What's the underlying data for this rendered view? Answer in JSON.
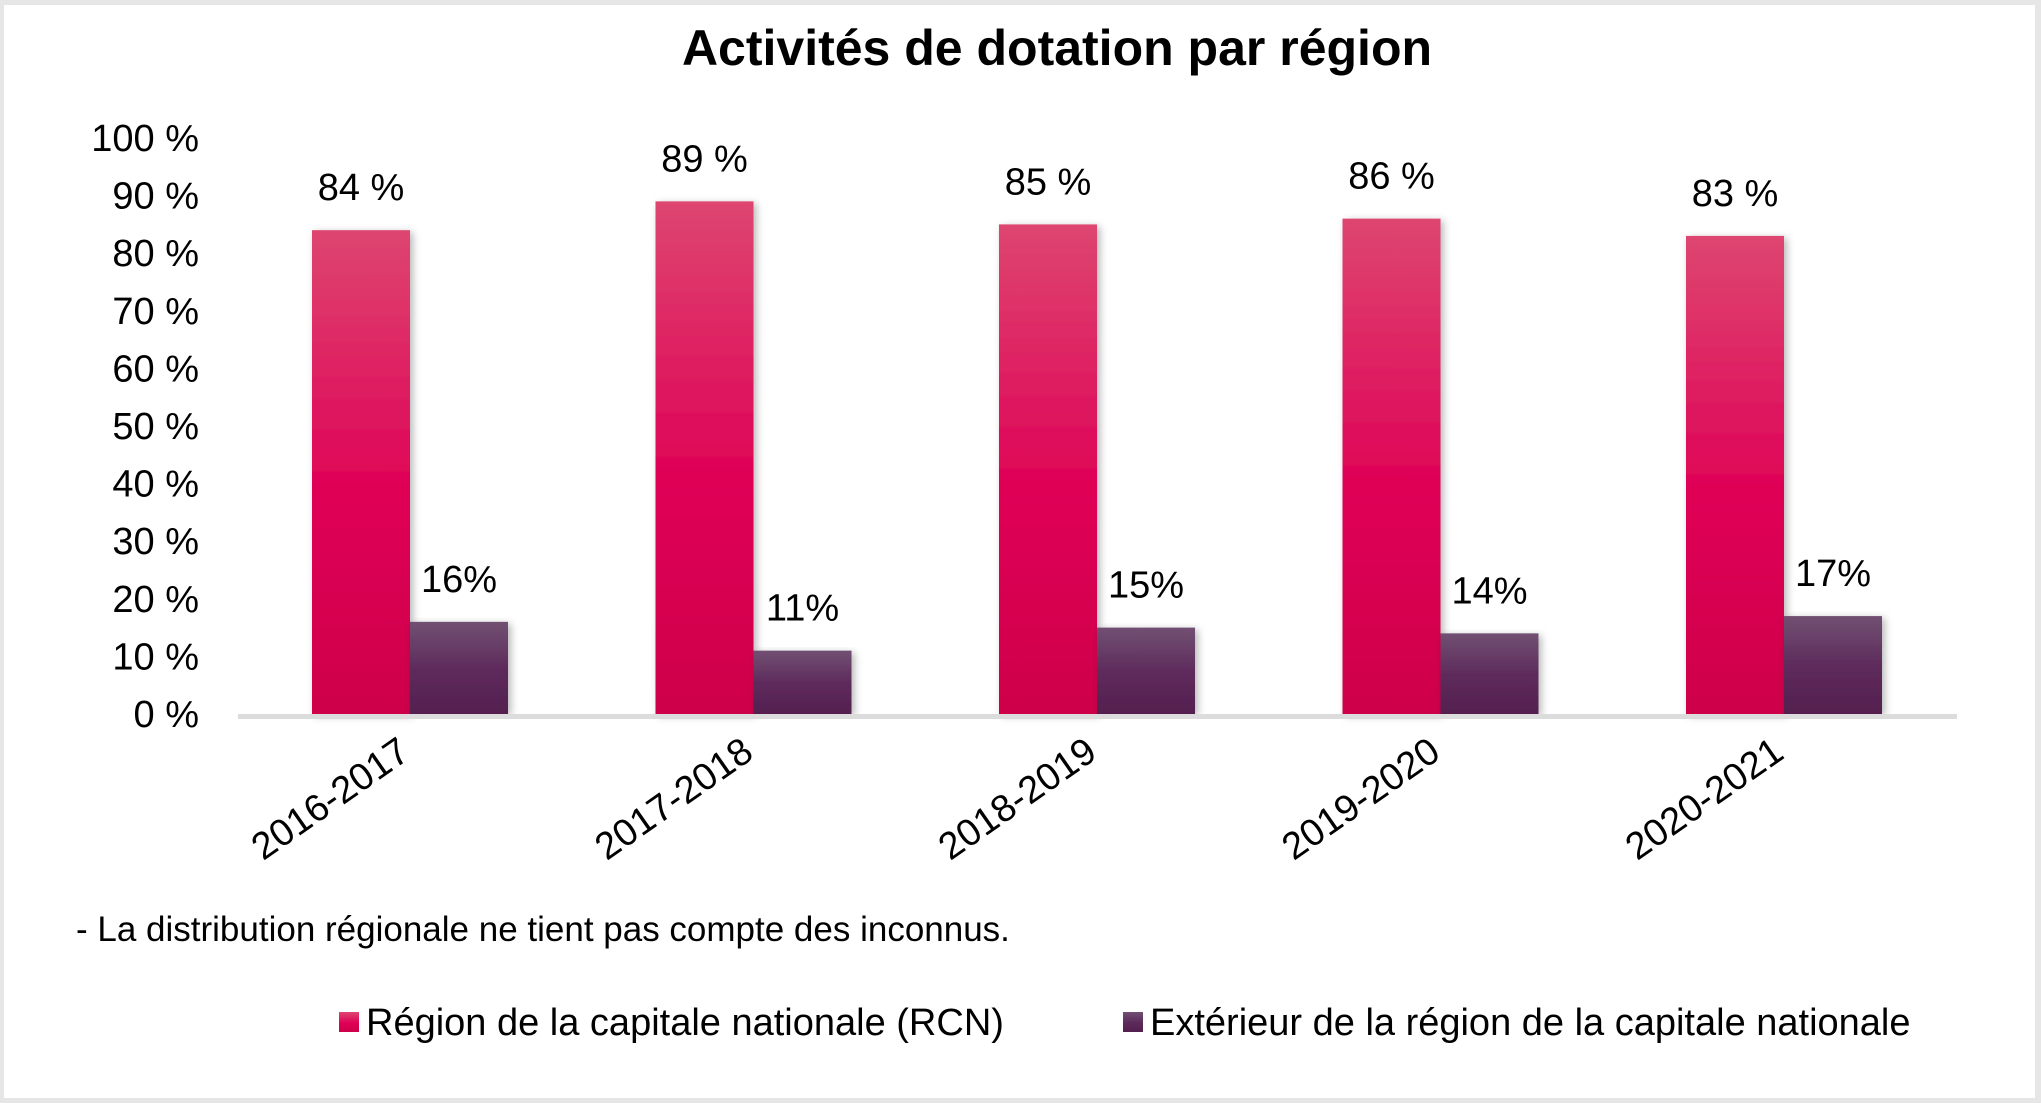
{
  "chart_data": {
    "type": "bar",
    "title": "Activités de dotation par région",
    "xlabel": "",
    "ylabel": "",
    "ylim": [
      0,
      100
    ],
    "yticks": [
      0,
      10,
      20,
      30,
      40,
      50,
      60,
      70,
      80,
      90,
      100
    ],
    "ytick_labels": [
      "0 %",
      "10 %",
      "20 %",
      "30 %",
      "40 %",
      "50 %",
      "60 %",
      "70 %",
      "80 %",
      "90 %",
      "100 %"
    ],
    "grid": false,
    "categories": [
      "2016-2017",
      "2017-2018",
      "2018-2019",
      "2019-2020",
      "2020-2021"
    ],
    "series": [
      {
        "name": "Région de la capitale nationale (RCN)",
        "values": [
          84,
          89,
          85,
          86,
          83
        ],
        "labels": [
          "84 %",
          "89 %",
          "85 %",
          "86 %",
          "83 %"
        ],
        "color": "#d6004f",
        "color_top": "#dd4670"
      },
      {
        "name": "Extérieur de la région de la capitale nationale",
        "values": [
          16,
          11,
          15,
          14,
          17
        ],
        "labels": [
          "16%",
          "11%",
          "15%",
          "14%",
          "17%"
        ],
        "color": "#552150",
        "color_top": "#6f4b6c"
      }
    ],
    "note": "- La distribution régionale ne tient pas compte des inconnus.",
    "legend_position": "bottom-right"
  }
}
